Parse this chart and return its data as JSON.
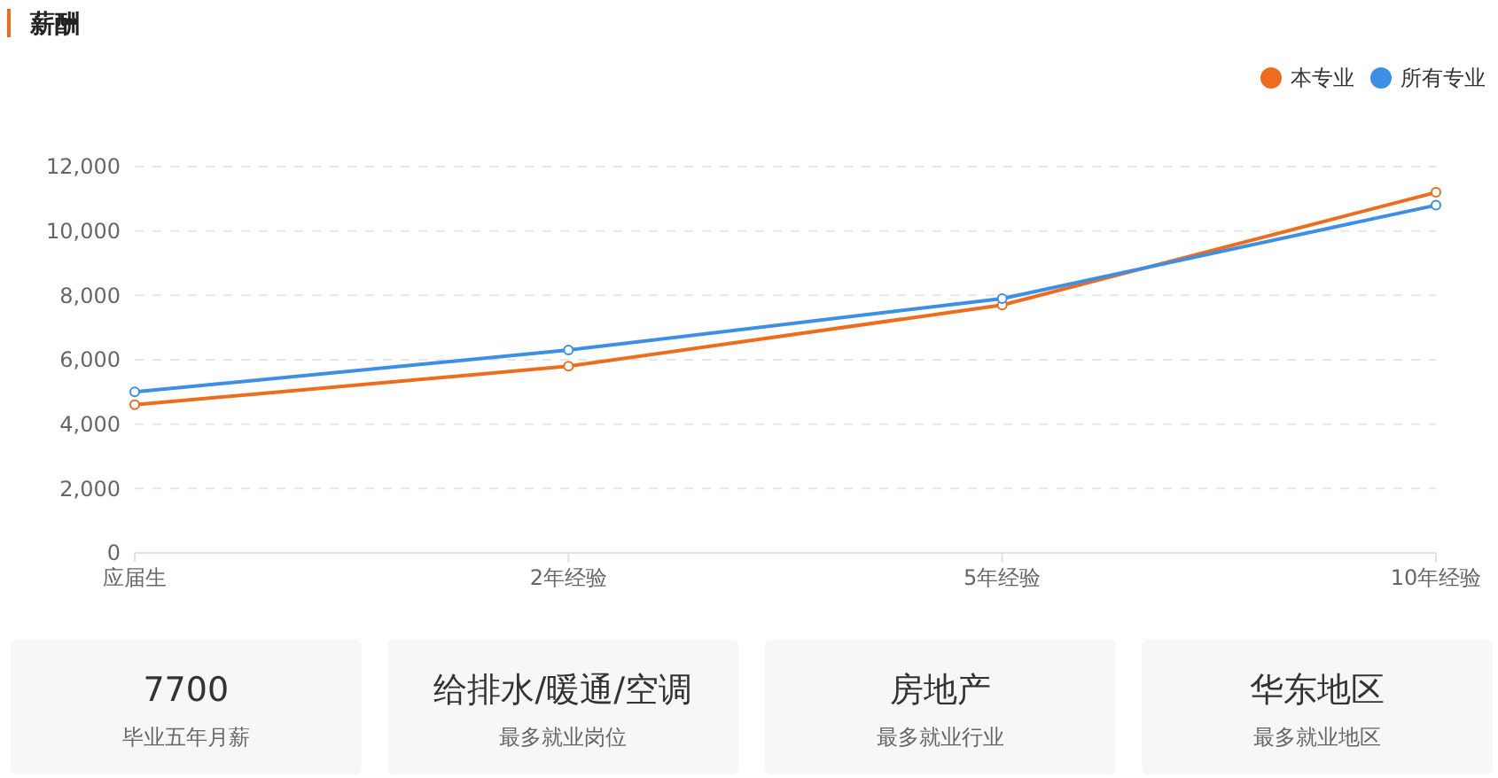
{
  "chart_data": [
    {
      "type": "line",
      "title": "薪酬",
      "categories": [
        "应届生",
        "2年经验",
        "5年经验",
        "10年经验"
      ],
      "series": [
        {
          "name": "本专业",
          "color": "#ee6c1d",
          "values": [
            4600,
            5800,
            7700,
            11200
          ]
        },
        {
          "name": "所有专业",
          "color": "#3d8fe6",
          "values": [
            5000,
            6300,
            7900,
            10800
          ]
        }
      ],
      "ylim": [
        0,
        12000
      ],
      "yticks": [
        0,
        {
          "value": 2000,
          "label": "2,000"
        },
        {
          "value": 4000,
          "label": "4,000"
        },
        {
          "value": 6000,
          "label": "6,000"
        },
        {
          "value": 8000,
          "label": "8,000"
        },
        {
          "value": 10000,
          "label": "10,000"
        },
        {
          "value": 12000,
          "label": "12,000"
        }
      ],
      "grid": "y",
      "legend": "top right",
      "marker": "circle",
      "line_style": "solid"
    },
    {
      "type": "other",
      "title": "7700",
      "subtitle": "毕业五年月薪"
    },
    {
      "type": "other",
      "title": "给排水/暖通/空调",
      "subtitle": "最多就业岗位"
    },
    {
      "type": "other",
      "title": "房地产",
      "subtitle": "最多就业行业"
    },
    {
      "type": "other",
      "title": "华东地区",
      "subtitle": "最多就业地区"
    }
  ]
}
